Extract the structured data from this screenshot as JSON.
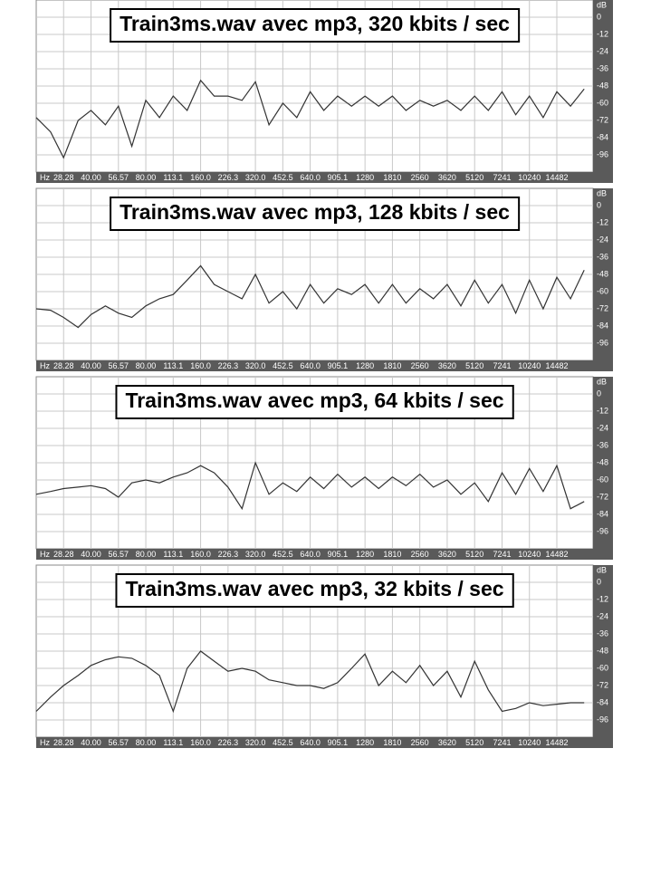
{
  "chart_data": [
    {
      "type": "line",
      "title": "Train3ms.wav avec mp3, 320 kbits / sec",
      "xlabel": "Hz",
      "ylabel": "dB",
      "log_x": true,
      "grid": true,
      "xlim": [
        20,
        22900
      ],
      "ylim": [
        -108,
        12
      ],
      "xticks": [
        28.28,
        {
          "value": 40,
          "label": "40.00"
        },
        56.57,
        {
          "value": 80,
          "label": "80.00"
        },
        113.1,
        {
          "value": 160,
          "label": "160.0"
        },
        226.3,
        {
          "value": 320,
          "label": "320.0"
        },
        452.5,
        {
          "value": 640,
          "label": "640.0"
        },
        905.1,
        1280,
        1810,
        2560,
        3620,
        5120,
        7241,
        10240,
        14482
      ],
      "yticks": [
        0,
        -12,
        -24,
        -36,
        -48,
        -60,
        -72,
        -84,
        -96
      ],
      "x": [
        20,
        24,
        28.28,
        34,
        40,
        48,
        56.57,
        67,
        80,
        95,
        113.1,
        135,
        160,
        190,
        226.3,
        270,
        320,
        380,
        452.5,
        540,
        640,
        760,
        905.1,
        1080,
        1280,
        1520,
        1810,
        2150,
        2560,
        3040,
        3620,
        4300,
        5120,
        6090,
        7241,
        8610,
        10240,
        12180,
        14482,
        17220,
        20480
      ],
      "series": [
        {
          "color": "#333333",
          "values": [
            -70,
            -80,
            -98,
            -72,
            -65,
            -75,
            -62,
            -90,
            -58,
            -70,
            -55,
            -65,
            -44,
            -55,
            -55,
            -58,
            -45,
            -75,
            -60,
            -70,
            -52,
            -65,
            -55,
            -62,
            -55,
            -62,
            -55,
            -65,
            -58,
            -62,
            -58,
            -65,
            -55,
            -65,
            -52,
            -68,
            -55,
            -70,
            -52,
            -62,
            -50
          ]
        }
      ]
    },
    {
      "type": "line",
      "title": "Train3ms.wav avec mp3, 128 kbits / sec",
      "xlabel": "Hz",
      "ylabel": "dB",
      "log_x": true,
      "grid": true,
      "xlim": [
        20,
        22900
      ],
      "ylim": [
        -108,
        12
      ],
      "xticks": [
        28.28,
        {
          "value": 40,
          "label": "40.00"
        },
        56.57,
        {
          "value": 80,
          "label": "80.00"
        },
        113.1,
        {
          "value": 160,
          "label": "160.0"
        },
        226.3,
        {
          "value": 320,
          "label": "320.0"
        },
        452.5,
        {
          "value": 640,
          "label": "640.0"
        },
        905.1,
        1280,
        1810,
        2560,
        3620,
        5120,
        7241,
        10240,
        14482
      ],
      "yticks": [
        0,
        -12,
        -24,
        -36,
        -48,
        -60,
        -72,
        -84,
        -96
      ],
      "x": [
        20,
        24,
        28.28,
        34,
        40,
        48,
        56.57,
        67,
        80,
        95,
        113.1,
        135,
        160,
        190,
        226.3,
        270,
        320,
        380,
        452.5,
        540,
        640,
        760,
        905.1,
        1080,
        1280,
        1520,
        1810,
        2150,
        2560,
        3040,
        3620,
        4300,
        5120,
        6090,
        7241,
        8610,
        10240,
        12180,
        14482,
        17220,
        20480
      ],
      "series": [
        {
          "color": "#333333",
          "values": [
            -72,
            -73,
            -78,
            -85,
            -76,
            -70,
            -75,
            -78,
            -70,
            -65,
            -62,
            -52,
            -42,
            -55,
            -60,
            -65,
            -48,
            -68,
            -60,
            -72,
            -55,
            -68,
            -58,
            -62,
            -55,
            -68,
            -55,
            -68,
            -58,
            -65,
            -55,
            -70,
            -52,
            -68,
            -55,
            -75,
            -52,
            -72,
            -50,
            -65,
            -45
          ]
        }
      ]
    },
    {
      "type": "line",
      "title": "Train3ms.wav avec mp3, 64 kbits / sec",
      "xlabel": "Hz",
      "ylabel": "dB",
      "log_x": true,
      "grid": true,
      "xlim": [
        20,
        22900
      ],
      "ylim": [
        -108,
        12
      ],
      "xticks": [
        28.28,
        {
          "value": 40,
          "label": "40.00"
        },
        56.57,
        {
          "value": 80,
          "label": "80.00"
        },
        113.1,
        {
          "value": 160,
          "label": "160.0"
        },
        226.3,
        {
          "value": 320,
          "label": "320.0"
        },
        452.5,
        {
          "value": 640,
          "label": "640.0"
        },
        905.1,
        1280,
        1810,
        2560,
        3620,
        5120,
        7241,
        10240,
        14482
      ],
      "yticks": [
        0,
        -12,
        -24,
        -36,
        -48,
        -60,
        -72,
        -84,
        -96
      ],
      "x": [
        20,
        24,
        28.28,
        34,
        40,
        48,
        56.57,
        67,
        80,
        95,
        113.1,
        135,
        160,
        190,
        226.3,
        270,
        320,
        380,
        452.5,
        540,
        640,
        760,
        905.1,
        1080,
        1280,
        1520,
        1810,
        2150,
        2560,
        3040,
        3620,
        4300,
        5120,
        6090,
        7241,
        8610,
        10240,
        12180,
        14482,
        17220,
        20480
      ],
      "series": [
        {
          "color": "#333333",
          "values": [
            -70,
            -68,
            -66,
            -65,
            -64,
            -66,
            -72,
            -62,
            -60,
            -62,
            -58,
            -55,
            -50,
            -55,
            -65,
            -80,
            -48,
            -70,
            -62,
            -68,
            -58,
            -66,
            -56,
            -65,
            -58,
            -66,
            -58,
            -64,
            -56,
            -65,
            -60,
            -70,
            -62,
            -75,
            -55,
            -70,
            -52,
            -68,
            -50,
            -80,
            -75
          ]
        }
      ]
    },
    {
      "type": "line",
      "title": "Train3ms.wav avec mp3, 32 kbits / sec",
      "xlabel": "Hz",
      "ylabel": "dB",
      "log_x": true,
      "grid": true,
      "xlim": [
        20,
        22900
      ],
      "ylim": [
        -108,
        12
      ],
      "xticks": [
        28.28,
        {
          "value": 40,
          "label": "40.00"
        },
        56.57,
        {
          "value": 80,
          "label": "80.00"
        },
        113.1,
        {
          "value": 160,
          "label": "160.0"
        },
        226.3,
        {
          "value": 320,
          "label": "320.0"
        },
        452.5,
        {
          "value": 640,
          "label": "640.0"
        },
        905.1,
        1280,
        1810,
        2560,
        3620,
        5120,
        7241,
        10240,
        14482
      ],
      "yticks": [
        0,
        -12,
        -24,
        -36,
        -48,
        -60,
        -72,
        -84,
        -96
      ],
      "x": [
        20,
        24,
        28.28,
        34,
        40,
        48,
        56.57,
        67,
        80,
        95,
        113.1,
        135,
        160,
        190,
        226.3,
        270,
        320,
        380,
        452.5,
        540,
        640,
        760,
        905.1,
        1080,
        1280,
        1520,
        1810,
        2150,
        2560,
        3040,
        3620,
        4300,
        5120,
        6090,
        7241,
        8610,
        10240,
        12180,
        14482,
        17220,
        20480
      ],
      "series": [
        {
          "color": "#333333",
          "values": [
            -90,
            -80,
            -72,
            -65,
            -58,
            -54,
            -52,
            -53,
            -58,
            -65,
            -90,
            -60,
            -48,
            -55,
            -62,
            -60,
            -62,
            -68,
            -70,
            -72,
            -72,
            -74,
            -70,
            -60,
            -50,
            -72,
            -62,
            -70,
            -58,
            -72,
            -62,
            -80,
            -55,
            -75,
            -90,
            -88,
            -84,
            -86,
            -85,
            -84,
            -84
          ]
        }
      ]
    }
  ]
}
